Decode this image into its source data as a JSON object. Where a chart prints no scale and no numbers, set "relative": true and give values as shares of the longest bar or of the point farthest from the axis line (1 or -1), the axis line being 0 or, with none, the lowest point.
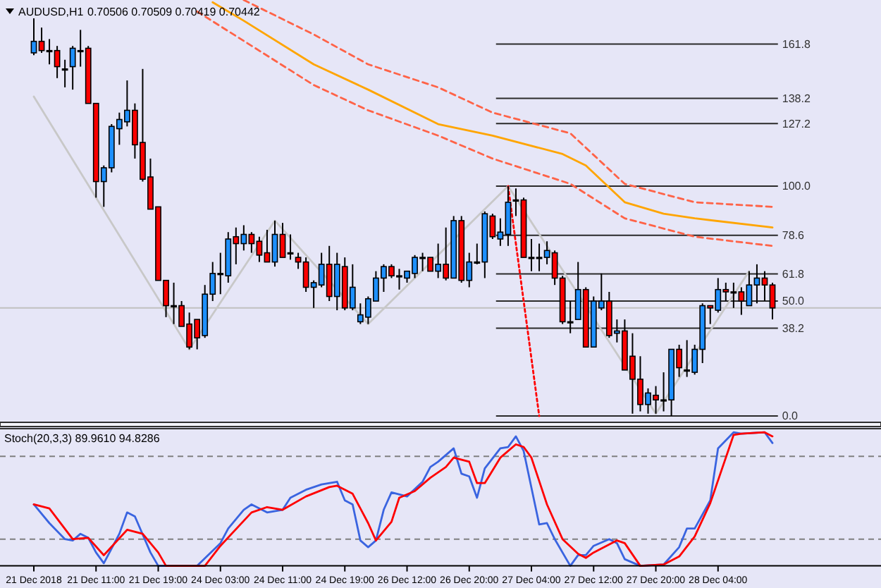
{
  "chart_data": [
    {
      "type": "candlestick",
      "title": "AUDUSD,H1",
      "subtitle": "0.70506 0.70509 0.70419 0.70442",
      "tick_labels": "y",
      "ylim": [
        0,
        181
      ],
      "yticks": [
        {
          "value": 0,
          "label": "0.0"
        },
        {
          "value": 38.2,
          "label": "38.2"
        },
        {
          "value": 50,
          "label": "50.0"
        },
        {
          "value": 61.8,
          "label": "61.8"
        },
        {
          "value": 78.6,
          "label": "78.6"
        },
        {
          "value": 100,
          "label": "100.0"
        },
        {
          "value": 127.2,
          "label": "127.2"
        },
        {
          "value": 138.2,
          "label": "138.2"
        },
        {
          "value": 161.8,
          "label": "161.8"
        }
      ],
      "categories": [
        null,
        null,
        null,
        null,
        null,
        null,
        null,
        null,
        null,
        null,
        null,
        null,
        null,
        null,
        null,
        null,
        null,
        null,
        null,
        null,
        null,
        null,
        null,
        null,
        null,
        null,
        null,
        null,
        null,
        null,
        null,
        null,
        null,
        null,
        null,
        null,
        null,
        null,
        null,
        null,
        null,
        null,
        null,
        null,
        null,
        null,
        null,
        null,
        null,
        null,
        null,
        null,
        null,
        null,
        null,
        null,
        null,
        null,
        null,
        null,
        null,
        null,
        null,
        null,
        null,
        null,
        null,
        null,
        null,
        null,
        null,
        null,
        null,
        null,
        null,
        null,
        null,
        null,
        null,
        null,
        null,
        null,
        null,
        null,
        null,
        null,
        null,
        null,
        null,
        null,
        null,
        null,
        null,
        null,
        null,
        null
      ],
      "ohlc": [
        [
          158,
          173,
          157,
          163
        ],
        [
          163,
          169,
          158,
          159
        ],
        [
          159,
          164,
          153,
          159
        ],
        [
          159,
          161,
          147,
          152
        ],
        [
          151,
          155,
          143,
          151
        ],
        [
          152,
          161,
          142,
          160
        ],
        [
          159,
          168,
          152,
          159
        ],
        [
          160,
          161,
          136,
          136
        ],
        [
          136,
          136,
          95,
          102
        ],
        [
          102,
          109,
          91,
          108
        ],
        [
          108,
          127,
          106,
          126
        ],
        [
          125,
          132,
          118,
          129
        ],
        [
          128,
          146,
          126,
          133
        ],
        [
          133,
          136,
          112,
          118
        ],
        [
          119,
          151,
          102,
          103
        ],
        [
          104,
          112,
          90,
          90
        ],
        [
          91,
          91,
          59,
          59
        ],
        [
          59,
          59,
          43,
          48
        ],
        [
          48,
          58,
          40,
          48
        ],
        [
          48,
          50,
          39,
          39
        ],
        [
          40,
          45,
          29,
          30
        ],
        [
          42,
          42,
          29,
          34
        ],
        [
          35,
          57,
          34,
          53
        ],
        [
          53,
          67,
          50,
          62
        ],
        [
          62,
          71,
          53,
          62
        ],
        [
          61,
          80,
          58,
          77
        ],
        [
          78,
          82,
          66,
          75
        ],
        [
          75,
          83,
          72,
          79
        ],
        [
          79,
          80,
          71,
          75
        ],
        [
          76,
          78,
          67,
          70
        ],
        [
          71,
          81,
          67,
          67
        ],
        [
          67,
          85,
          65,
          79
        ],
        [
          79,
          84,
          69,
          69
        ],
        [
          71,
          79,
          68,
          71
        ],
        [
          69,
          71,
          64,
          67
        ],
        [
          67,
          69,
          54,
          56
        ],
        [
          56,
          59,
          47,
          58
        ],
        [
          57,
          71,
          56,
          66
        ],
        [
          66,
          74,
          50,
          52
        ],
        [
          52,
          71,
          46,
          66
        ],
        [
          65,
          69,
          46,
          47
        ],
        [
          47,
          66,
          46,
          56
        ],
        [
          41,
          49,
          40,
          44
        ],
        [
          43,
          52,
          40,
          51
        ],
        [
          50,
          63,
          50,
          60
        ],
        [
          60,
          66,
          54,
          65
        ],
        [
          65,
          66,
          60,
          61
        ],
        [
          61,
          64,
          55,
          61
        ],
        [
          60,
          63,
          58,
          63
        ],
        [
          62,
          70,
          60,
          69
        ],
        [
          69,
          71,
          63,
          69
        ],
        [
          69,
          69,
          63,
          63
        ],
        [
          63,
          75,
          60,
          66
        ],
        [
          66,
          82,
          59,
          60
        ],
        [
          60,
          87,
          60,
          85
        ],
        [
          85,
          87,
          58,
          59
        ],
        [
          59,
          71,
          56,
          67
        ],
        [
          67,
          75,
          66,
          67
        ],
        [
          67,
          89,
          60,
          88
        ],
        [
          87,
          88,
          77,
          78
        ],
        [
          77,
          86,
          74,
          80
        ],
        [
          79,
          100,
          74,
          93
        ],
        [
          94,
          99,
          87,
          94
        ],
        [
          94,
          95,
          69,
          69
        ],
        [
          69,
          77,
          63,
          69
        ],
        [
          69,
          75,
          63,
          69
        ],
        [
          69,
          76,
          66,
          72
        ],
        [
          71,
          72,
          57,
          60
        ],
        [
          60,
          61,
          40,
          41
        ],
        [
          41,
          50,
          36,
          41
        ],
        [
          42,
          67,
          42,
          55
        ],
        [
          55,
          56,
          30,
          30
        ],
        [
          30,
          52,
          30,
          50
        ],
        [
          47,
          62,
          46,
          50
        ],
        [
          50,
          54,
          34,
          35
        ],
        [
          36,
          42,
          32,
          37
        ],
        [
          37,
          42,
          20,
          20
        ],
        [
          26,
          36,
          1,
          16
        ],
        [
          16,
          26,
          2,
          5
        ],
        [
          5,
          12,
          1,
          10
        ],
        [
          9,
          13,
          1,
          7
        ],
        [
          7,
          19,
          2,
          7
        ],
        [
          7,
          29,
          0,
          29
        ],
        [
          29,
          31,
          17,
          21
        ],
        [
          20,
          33,
          17,
          20
        ],
        [
          19,
          31,
          18,
          29
        ],
        [
          29,
          49,
          23,
          48
        ],
        [
          48,
          48,
          40,
          47
        ],
        [
          46,
          60,
          45,
          55
        ],
        [
          55,
          58,
          50,
          54
        ],
        [
          54,
          58,
          47,
          54
        ],
        [
          54,
          56,
          44,
          50
        ],
        [
          48,
          63,
          48,
          57
        ],
        [
          57,
          66,
          49,
          60
        ],
        [
          60,
          63,
          50,
          57
        ],
        [
          57,
          58,
          42,
          47
        ]
      ],
      "colors": [
        "#1e90ff",
        "#ff0000",
        "#000000",
        "#ff0000",
        "#000000",
        "#1e90ff",
        "#000000",
        "#ff0000",
        "#ff0000",
        "#1e90ff",
        "#1e90ff",
        "#1e90ff",
        "#1e90ff",
        "#ff0000",
        "#ff0000",
        "#ff0000",
        "#ff0000",
        "#ff0000",
        "#000000",
        "#ff0000",
        "#ff0000",
        "#ff0000",
        "#1e90ff",
        "#1e90ff",
        "#000000",
        "#1e90ff",
        "#ff0000",
        "#1e90ff",
        "#ff0000",
        "#ff0000",
        "#ff0000",
        "#1e90ff",
        "#ff0000",
        "#000000",
        "#ff0000",
        "#ff0000",
        "#1e90ff",
        "#1e90ff",
        "#ff0000",
        "#1e90ff",
        "#ff0000",
        "#1e90ff",
        "#1e90ff",
        "#1e90ff",
        "#1e90ff",
        "#1e90ff",
        "#ff0000",
        "#000000",
        "#1e90ff",
        "#1e90ff",
        "#000000",
        "#ff0000",
        "#1e90ff",
        "#ff0000",
        "#1e90ff",
        "#ff0000",
        "#1e90ff",
        "#000000",
        "#1e90ff",
        "#ff0000",
        "#1e90ff",
        "#1e90ff",
        "#000000",
        "#ff0000",
        "#000000",
        "#000000",
        "#1e90ff",
        "#ff0000",
        "#ff0000",
        "#000000",
        "#1e90ff",
        "#ff0000",
        "#1e90ff",
        "#1e90ff",
        "#ff0000",
        "#1e90ff",
        "#ff0000",
        "#ff0000",
        "#ff0000",
        "#1e90ff",
        "#ff0000",
        "#000000",
        "#1e90ff",
        "#ff0000",
        "#000000",
        "#1e90ff",
        "#1e90ff",
        "#ff0000",
        "#1e90ff",
        "#ff0000",
        "#000000",
        "#ff0000",
        "#1e90ff",
        "#1e90ff",
        "#ff0000",
        "#ff0000"
      ],
      "series": [
        {
          "type": "line",
          "color": "#c8c8c8",
          "values": [
            139,
            null,
            null,
            null,
            null,
            null,
            null,
            null,
            null,
            null,
            null,
            null,
            null,
            null,
            null,
            null,
            null,
            null,
            null,
            null,
            29,
            null,
            null,
            null,
            null,
            null,
            null,
            null,
            null,
            null,
            null,
            85,
            null,
            null,
            null,
            null,
            null,
            null,
            null,
            null,
            null,
            null,
            null,
            40,
            null,
            null,
            null,
            null,
            null,
            null,
            null,
            null,
            null,
            null,
            null,
            null,
            null,
            null,
            null,
            null,
            null,
            100,
            null,
            null,
            null,
            null,
            null,
            null,
            null,
            null,
            null,
            null,
            null,
            null,
            null,
            null,
            null,
            null,
            null,
            null,
            1,
            null,
            null,
            null,
            null,
            null,
            null,
            null,
            null,
            null,
            null,
            null,
            63,
            null,
            null,
            null
          ]
        },
        {
          "type": "line",
          "color": "#ffa500",
          "values": [
            null,
            null,
            null,
            null,
            null,
            null,
            null,
            null,
            null,
            null,
            null,
            null,
            null,
            null,
            null,
            null,
            null,
            null,
            null,
            null,
            null,
            null,
            null,
            180,
            null,
            null,
            null,
            172,
            null,
            null,
            null,
            null,
            null,
            null,
            null,
            null,
            153,
            null,
            null,
            null,
            null,
            null,
            null,
            142,
            null,
            null,
            null,
            null,
            null,
            null,
            null,
            null,
            127,
            null,
            null,
            null,
            null,
            null,
            null,
            122,
            null,
            null,
            null,
            null,
            null,
            null,
            null,
            null,
            114,
            null,
            null,
            109,
            null,
            null,
            null,
            null,
            93,
            null,
            null,
            null,
            null,
            88,
            null,
            null,
            null,
            86,
            null,
            null,
            null,
            null,
            null,
            null,
            null,
            null,
            null,
            82
          ]
        },
        {
          "type": "line",
          "color": "#ff6347",
          "line_style": "dashed",
          "values": [
            null,
            null,
            null,
            null,
            null,
            null,
            null,
            null,
            null,
            null,
            null,
            null,
            null,
            null,
            null,
            null,
            null,
            null,
            null,
            null,
            null,
            null,
            null,
            null,
            null,
            null,
            null,
            181,
            null,
            null,
            null,
            null,
            null,
            null,
            null,
            null,
            166,
            null,
            null,
            null,
            null,
            null,
            null,
            153,
            null,
            null,
            null,
            null,
            null,
            null,
            null,
            null,
            143,
            null,
            null,
            null,
            null,
            null,
            null,
            132,
            null,
            null,
            null,
            null,
            null,
            null,
            null,
            null,
            null,
            123,
            null,
            null,
            null,
            null,
            null,
            null,
            101,
            null,
            null,
            null,
            null,
            null,
            null,
            null,
            null,
            93,
            null,
            null,
            null,
            null,
            null,
            null,
            null,
            null,
            null,
            91
          ]
        },
        {
          "type": "line",
          "color": "#ff6347",
          "line_style": "dashed",
          "values": [
            null,
            null,
            null,
            null,
            null,
            null,
            null,
            null,
            null,
            null,
            null,
            null,
            null,
            null,
            null,
            null,
            null,
            null,
            null,
            null,
            null,
            176,
            null,
            null,
            null,
            null,
            null,
            null,
            null,
            null,
            null,
            null,
            null,
            null,
            null,
            null,
            144,
            null,
            null,
            null,
            null,
            null,
            null,
            133,
            null,
            null,
            null,
            null,
            null,
            null,
            null,
            null,
            122,
            null,
            null,
            null,
            null,
            null,
            null,
            112,
            null,
            null,
            null,
            null,
            null,
            null,
            null,
            null,
            null,
            101,
            null,
            null,
            null,
            null,
            null,
            null,
            86,
            null,
            null,
            null,
            null,
            null,
            null,
            null,
            null,
            78,
            null,
            null,
            null,
            null,
            null,
            null,
            null,
            null,
            null,
            74
          ]
        },
        {
          "type": "line",
          "color": "#ff0000",
          "line_style": "dotted",
          "values": [
            null,
            null,
            null,
            null,
            null,
            null,
            null,
            null,
            null,
            null,
            null,
            null,
            null,
            null,
            null,
            null,
            null,
            null,
            null,
            null,
            null,
            null,
            null,
            null,
            null,
            null,
            null,
            null,
            null,
            null,
            null,
            null,
            null,
            null,
            null,
            null,
            null,
            null,
            null,
            null,
            null,
            null,
            null,
            null,
            null,
            null,
            null,
            null,
            null,
            null,
            null,
            null,
            null,
            null,
            null,
            null,
            null,
            null,
            null,
            null,
            null,
            100,
            null,
            null,
            null,
            0,
            null,
            null,
            null,
            null,
            null,
            null,
            null,
            null,
            null,
            null,
            null,
            null,
            null,
            null,
            null,
            null,
            null,
            null,
            null,
            null,
            null,
            null,
            null,
            null,
            null,
            null,
            null,
            null,
            null,
            null
          ]
        }
      ],
      "ref_lines": [
        {
          "axis": "y",
          "value": 47,
          "color": "#c0c0c0"
        },
        {
          "axis": "y",
          "value": 0
        },
        {
          "axis": "y",
          "value": 38.2
        },
        {
          "axis": "y",
          "value": 50
        },
        {
          "axis": "y",
          "value": 61.8
        },
        {
          "axis": "y",
          "value": 78.6
        },
        {
          "axis": "y",
          "value": 100
        },
        {
          "axis": "y",
          "value": 127.2
        },
        {
          "axis": "y",
          "value": 138.2
        },
        {
          "axis": "y",
          "value": 161.8
        }
      ]
    },
    {
      "type": "line",
      "title": "Stoch(20,3,3) 89.9610 94.8286",
      "tick_labels": "x",
      "relative": true,
      "categories": [
        "21 Dec 2018",
        null,
        null,
        null,
        null,
        null,
        null,
        null,
        "21 Dec 11:00",
        null,
        null,
        null,
        null,
        null,
        null,
        null,
        "21 Dec 19:00",
        null,
        null,
        null,
        null,
        null,
        null,
        null,
        "24 Dec 03:00",
        null,
        null,
        null,
        null,
        null,
        null,
        null,
        "24 Dec 11:00",
        null,
        null,
        null,
        null,
        null,
        null,
        null,
        "24 Dec 19:00",
        null,
        null,
        null,
        null,
        null,
        null,
        null,
        "26 Dec 12:00",
        null,
        null,
        null,
        null,
        null,
        null,
        null,
        "26 Dec 20:00",
        null,
        null,
        null,
        null,
        null,
        null,
        null,
        "27 Dec 04:00",
        null,
        null,
        null,
        null,
        null,
        null,
        null,
        "27 Dec 12:00",
        null,
        null,
        null,
        null,
        null,
        null,
        null,
        "27 Dec 20:00",
        null,
        null,
        null,
        null,
        null,
        null,
        null,
        "28 Dec 04:00",
        null,
        null,
        null,
        null,
        null,
        null,
        null
      ],
      "ref_lines": [
        {
          "axis": "y",
          "value": 0.82,
          "color": "#808080",
          "line_style": "dashed"
        },
        {
          "axis": "y",
          "value": 0.2,
          "color": "#808080",
          "line_style": "dashed"
        }
      ],
      "series": [
        {
          "color": "#3a64e0",
          "values": [
            0.46,
            null,
            0.32,
            null,
            0.2,
            0.19,
            0.24,
            0.21,
            0.1,
            0.02,
            null,
            0.24,
            0.4,
            0.37,
            null,
            0.1,
            0,
            null,
            null,
            null,
            null,
            0,
            null,
            null,
            0.17,
            0.28,
            null,
            0.42,
            0.46,
            null,
            0.4,
            null,
            0.42,
            0.51,
            null,
            0.57,
            null,
            0.61,
            null,
            0.63,
            0.49,
            0.46,
            0.19,
            0.14,
            0.19,
            0.42,
            0.55,
            null,
            0.52,
            null,
            0.63,
            0.74,
            0.78,
            null,
            0.88,
            0.69,
            0.67,
            0.51,
            0.73,
            null,
            0.88,
            0.89,
            0.97,
            0.86,
            null,
            0.31,
            0.32,
            0.2,
            null,
            0,
            0.08,
            0.08,
            0.15,
            null,
            0.2,
            0.17,
            0.05,
            null,
            0,
            null,
            null,
            0.01,
            null,
            0.14,
            0.28,
            0.28,
            null,
            0.49,
            0.88,
            null,
            1,
            0.99,
            null,
            null,
            1,
            0.92
          ]
        },
        {
          "color": "#ff0000",
          "values": [
            0.46,
            null,
            0.43,
            null,
            null,
            0.2,
            null,
            0.21,
            null,
            0.08,
            null,
            null,
            0.27,
            null,
            0.24,
            null,
            0.1,
            0,
            null,
            null,
            null,
            null,
            0,
            null,
            0.15,
            null,
            null,
            null,
            0.4,
            null,
            0.44,
            null,
            0.42,
            null,
            null,
            0.52,
            null,
            null,
            0.59,
            0.6,
            null,
            0.54,
            null,
            0.32,
            0.19,
            null,
            0.33,
            0.51,
            null,
            0.56,
            null,
            0.66,
            null,
            0.74,
            0.81,
            null,
            0.78,
            0.62,
            0.62,
            null,
            0.81,
            null,
            0.91,
            0.89,
            0.81,
            null,
            0.46,
            null,
            0.2,
            null,
            0.09,
            0.06,
            0.1,
            null,
            null,
            0.19,
            0.17,
            null,
            0,
            null,
            null,
            0.01,
            null,
            0.07,
            null,
            0.22,
            null,
            0.47,
            null,
            null,
            0.98,
            0.99,
            null,
            null,
            1,
            0.97
          ]
        }
      ]
    }
  ]
}
